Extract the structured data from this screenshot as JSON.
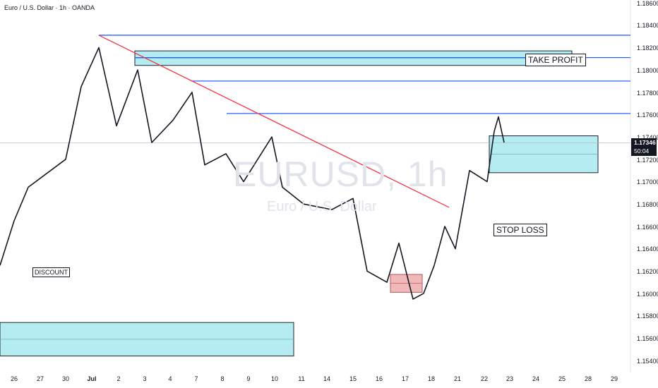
{
  "header": {
    "symbol_line": "Euro / U.S. Dollar · 1h · OANDA"
  },
  "watermark": {
    "symbol": "EURUSD, 1h",
    "description": "Euro / U.S. Dollar"
  },
  "annotations": {
    "take_profit": "TAKE PROFIT",
    "stop_loss": "STOP LOSS",
    "discount": "DISCOUNT"
  },
  "price_tag": {
    "price": "1.17346",
    "countdown": "50:04"
  },
  "colors": {
    "candle": "#131722",
    "level_line": "#2962ff",
    "trendline": "#f23645",
    "zone_fill": "#b2ebf2",
    "zone_border": "#131722",
    "ob_fill": "#f0b5b5"
  },
  "chart_data": {
    "type": "candlestick",
    "instrument": "Euro / U.S. Dollar",
    "timeframe": "1h",
    "ylim": [
      1.154,
      1.186
    ],
    "y_ticks": [
      "1.18600",
      "1.18400",
      "1.18200",
      "1.18000",
      "1.17800",
      "1.17600",
      "1.17400",
      "1.17200",
      "1.17000",
      "1.16800",
      "1.16600",
      "1.16400",
      "1.16200",
      "1.16000",
      "1.15800",
      "1.15600",
      "1.15400"
    ],
    "x_ticks": [
      "26",
      "27",
      "30",
      "Jul",
      "2",
      "3",
      "4",
      "7",
      "8",
      "9",
      "10",
      "11",
      "14",
      "15",
      "16",
      "17",
      "18",
      "21",
      "22",
      "23",
      "24",
      "25",
      "28",
      "29"
    ],
    "close_path": [
      [
        "26",
        1.1625
      ],
      [
        "27",
        1.1665
      ],
      [
        "27",
        1.1695
      ],
      [
        "30",
        1.172
      ],
      [
        "Jul",
        1.1785
      ],
      [
        "Jul",
        1.182
      ],
      [
        "2",
        1.175
      ],
      [
        "3",
        1.18
      ],
      [
        "3",
        1.1735
      ],
      [
        "4",
        1.1755
      ],
      [
        "7",
        1.178
      ],
      [
        "7",
        1.1715
      ],
      [
        "8",
        1.1725
      ],
      [
        "9",
        1.17
      ],
      [
        "10",
        1.174
      ],
      [
        "10",
        1.1695
      ],
      [
        "11",
        1.168
      ],
      [
        "14",
        1.1675
      ],
      [
        "15",
        1.1685
      ],
      [
        "15",
        1.162
      ],
      [
        "16",
        1.161
      ],
      [
        "16",
        1.1645
      ],
      [
        "17",
        1.1595
      ],
      [
        "17",
        1.16
      ],
      [
        "18",
        1.1625
      ],
      [
        "18",
        1.166
      ],
      [
        "21",
        1.164
      ],
      [
        "21",
        1.171
      ],
      [
        "22",
        1.17
      ],
      [
        "22",
        1.1745
      ],
      [
        "22",
        1.1758
      ],
      [
        "23",
        1.1735
      ]
    ],
    "levels": [
      1.1831,
      1.1811,
      1.179,
      1.1761
    ],
    "trendline": {
      "from": [
        "Jul",
        1.1831
      ],
      "to": [
        "18",
        1.1677
      ]
    },
    "zones": [
      {
        "name": "take-profit-zone",
        "y_top": 1.1817,
        "y_bottom": 1.1804,
        "x_from": "3",
        "x_to": "23"
      },
      {
        "name": "entry-zone",
        "y_top": 1.1741,
        "y_bottom": 1.1708,
        "x_from": "22",
        "x_to": "28"
      },
      {
        "name": "discount-zone",
        "y_top": 1.1574,
        "y_bottom": 1.1544,
        "x_from": "26",
        "x_to": "11"
      },
      {
        "name": "order-block-zone",
        "y_top": 1.1617,
        "y_bottom": 1.1601,
        "x_from": "16",
        "x_to": "17"
      }
    ],
    "current_price": 1.17346
  }
}
